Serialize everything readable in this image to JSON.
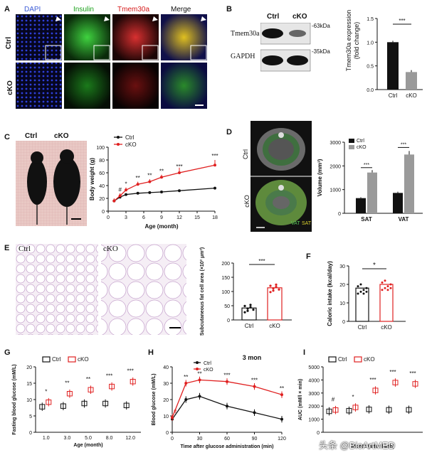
{
  "panels": {
    "A": {
      "letter": "A",
      "columns": [
        "DAPI",
        "Insulin",
        "Tmem30a",
        "Merge"
      ],
      "column_colors": [
        "#3b5bd6",
        "#1aa11a",
        "#d61a1a",
        "#111111"
      ],
      "rows": [
        "Ctrl",
        "cKO"
      ]
    },
    "B": {
      "letter": "B",
      "blot_headers": [
        "Ctrl",
        "cKO"
      ],
      "blot_rows": [
        "Tmem30a",
        "GAPDH"
      ],
      "markers": [
        "-63kDa",
        "-35kDa"
      ],
      "chart_title_lines": [
        "Tmem30a expression",
        "(fold change)"
      ],
      "sig": "***"
    },
    "C": {
      "letter": "C",
      "photo_labels": [
        "Ctrl",
        "cKO"
      ],
      "legend": [
        "Ctrl",
        "cKO"
      ],
      "sig_labels": [
        "#",
        "*",
        "**",
        "**",
        "**",
        "***",
        "***"
      ]
    },
    "D": {
      "letter": "D",
      "rows": [
        "Ctrl",
        "cKO"
      ],
      "fat_labels": [
        "VAT",
        "SAT"
      ],
      "sig": [
        "***",
        "***"
      ]
    },
    "E": {
      "letter": "E",
      "image_labels": [
        "Ctrl",
        "cKO"
      ],
      "sig": "***"
    },
    "F": {
      "letter": "F",
      "sig": "*"
    },
    "G": {
      "letter": "G",
      "sig": [
        "*",
        "**",
        "**",
        "***",
        "***"
      ]
    },
    "H": {
      "letter": "H",
      "title": "3 mon",
      "sig": [
        "#",
        "**",
        "**",
        "***",
        "***",
        "**"
      ]
    },
    "I": {
      "letter": "I",
      "sig": [
        "#",
        "*",
        "***",
        "***",
        "***"
      ],
      "watermark": "头条 @BioArtMED"
    }
  },
  "chart_data": [
    {
      "panel": "B",
      "type": "bar",
      "categories": [
        "Ctrl",
        "cKO"
      ],
      "values": [
        1.0,
        0.37
      ],
      "errors": [
        0.03,
        0.04
      ],
      "ylabel": "Tmem30a expression (fold change)",
      "ylim": [
        0.0,
        1.5
      ],
      "yticks": [
        "0.0",
        "0.5",
        "1.0",
        "1.5"
      ]
    },
    {
      "panel": "C",
      "type": "line",
      "x": [
        1,
        2,
        3,
        5,
        7,
        9,
        12,
        18
      ],
      "xticks": [
        "0",
        "3",
        "6",
        "9",
        "12",
        "15",
        "18"
      ],
      "xlabel": "Age (month)",
      "ylabel": "Body weight (g)",
      "ylim": [
        0,
        100
      ],
      "yticks": [
        "0",
        "20",
        "40",
        "60",
        "80",
        "100"
      ],
      "series": [
        {
          "name": "Ctrl",
          "color": "#111111",
          "values": [
            16,
            22,
            26,
            28,
            29,
            30,
            32,
            36
          ]
        },
        {
          "name": "cKO",
          "color": "#e02020",
          "values": [
            16,
            24,
            33,
            42,
            46,
            53,
            60,
            72
          ]
        }
      ]
    },
    {
      "panel": "D",
      "type": "bar",
      "categories": [
        "SAT",
        "VAT"
      ],
      "ylabel": "Volume (mm³)",
      "ylim": [
        0,
        3000
      ],
      "yticks": [
        "0",
        "1000",
        "2000",
        "3000"
      ],
      "series": [
        {
          "name": "Ctrl",
          "color": "#111111",
          "values": [
            640,
            860
          ]
        },
        {
          "name": "cKO",
          "color": "#9a9a9a",
          "values": [
            1720,
            2480
          ]
        }
      ]
    },
    {
      "panel": "E",
      "type": "bar",
      "categories": [
        "Ctrl",
        "cKO"
      ],
      "values": [
        42,
        113
      ],
      "ylabel": "Subcutaneous fat cell area (×10² μm²)",
      "ylim": [
        0,
        200
      ],
      "yticks": [
        "0",
        "50",
        "100",
        "150",
        "200"
      ]
    },
    {
      "panel": "F",
      "type": "bar",
      "categories": [
        "Ctrl",
        "cKO"
      ],
      "values": [
        18,
        20
      ],
      "ylabel": "Caloric intake (kcal/day)",
      "ylim": [
        0,
        30
      ],
      "yticks": [
        "0",
        "10",
        "20",
        "30"
      ]
    },
    {
      "panel": "G",
      "type": "box",
      "categories": [
        "1.0",
        "3.0",
        "5.0",
        "8.0",
        "12.0"
      ],
      "xlabel": "Age (month)",
      "ylabel": "Fasting blood glucose (mM/L)",
      "ylim": [
        0,
        20
      ],
      "yticks": [
        "0",
        "5",
        "10",
        "15",
        "20"
      ],
      "series": [
        {
          "name": "Ctrl",
          "color": "#111111",
          "values": [
            7.8,
            8.0,
            8.8,
            8.8,
            8.2
          ]
        },
        {
          "name": "cKO",
          "color": "#e02020",
          "values": [
            9.2,
            11.8,
            13.0,
            14.0,
            15.5
          ]
        }
      ]
    },
    {
      "panel": "H",
      "type": "line",
      "x": [
        0,
        15,
        30,
        60,
        90,
        120
      ],
      "xticks": [
        "0",
        "30",
        "60",
        "90",
        "120"
      ],
      "xlabel": "Time after glucose administration (min)",
      "ylabel": "Blood glucose (mM/L)",
      "ylim": [
        0,
        40
      ],
      "yticks": [
        "0",
        "10",
        "20",
        "30",
        "40"
      ],
      "series": [
        {
          "name": "Ctrl",
          "color": "#111111",
          "values": [
            8,
            20,
            22,
            16,
            12,
            8
          ]
        },
        {
          "name": "cKO",
          "color": "#e02020",
          "values": [
            9,
            30,
            32,
            31,
            28,
            23
          ]
        }
      ]
    },
    {
      "panel": "I",
      "type": "box",
      "categories": [
        "",
        "",
        "",
        "",
        ""
      ],
      "xlabel": "Month (after birth)",
      "ylabel": "AUC (mM/l × min)",
      "ylim": [
        0,
        5000
      ],
      "yticks": [
        "0",
        "1000",
        "2000",
        "3000",
        "4000",
        "5000"
      ],
      "series": [
        {
          "name": "Ctrl",
          "color": "#111111",
          "values": [
            1600,
            1650,
            1750,
            1720,
            1720
          ]
        },
        {
          "name": "cKO",
          "color": "#e02020",
          "values": [
            1700,
            1900,
            3200,
            3800,
            3700
          ]
        }
      ]
    }
  ]
}
